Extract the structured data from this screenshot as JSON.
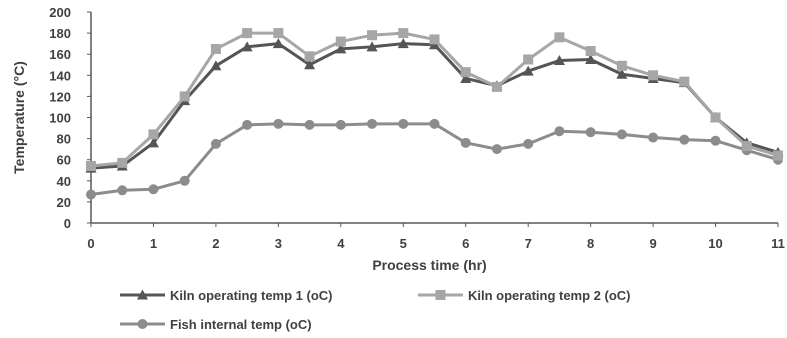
{
  "chart_data": {
    "type": "line",
    "title": "",
    "xlabel": "Process time (hr)",
    "ylabel": "Temperature (°C)",
    "xlim": [
      0,
      11
    ],
    "ylim": [
      0,
      200
    ],
    "x_ticks": [
      "0",
      "1",
      "2",
      "3",
      "4",
      "5",
      "6",
      "7",
      "8",
      "9",
      "10",
      "11"
    ],
    "y_ticks": [
      "0",
      "20",
      "40",
      "60",
      "80",
      "100",
      "120",
      "140",
      "160",
      "180",
      "200"
    ],
    "grid": false,
    "legend_position": "bottom",
    "x": [
      0,
      0.5,
      1,
      1.5,
      2,
      2.5,
      3,
      3.5,
      4,
      4.5,
      5,
      5.5,
      6,
      6.5,
      7,
      7.5,
      8,
      8.5,
      9,
      9.5,
      10,
      10.5,
      11
    ],
    "series": [
      {
        "name": "Kiln operating temp 1 (oC)",
        "color": "#555555",
        "marker": "triangle",
        "values": [
          52,
          54,
          76,
          116,
          149,
          167,
          170,
          150,
          165,
          167,
          170,
          169,
          137,
          130,
          144,
          154,
          155,
          141,
          137,
          133,
          100,
          76,
          67
        ]
      },
      {
        "name": "Kiln operating temp 2 (oC)",
        "color": "#a6a6a6",
        "marker": "square",
        "values": [
          54,
          57,
          84,
          120,
          165,
          180,
          180,
          158,
          172,
          178,
          180,
          174,
          143,
          129,
          155,
          176,
          163,
          149,
          140,
          134,
          100,
          73,
          64
        ]
      },
      {
        "name": "Fish internal temp (oC)",
        "color": "#8c8c8c",
        "marker": "circle",
        "values": [
          27,
          31,
          32,
          40,
          75,
          93,
          94,
          93,
          93,
          94,
          94,
          94,
          76,
          70,
          75,
          87,
          86,
          84,
          81,
          79,
          78,
          69,
          60
        ]
      }
    ]
  }
}
